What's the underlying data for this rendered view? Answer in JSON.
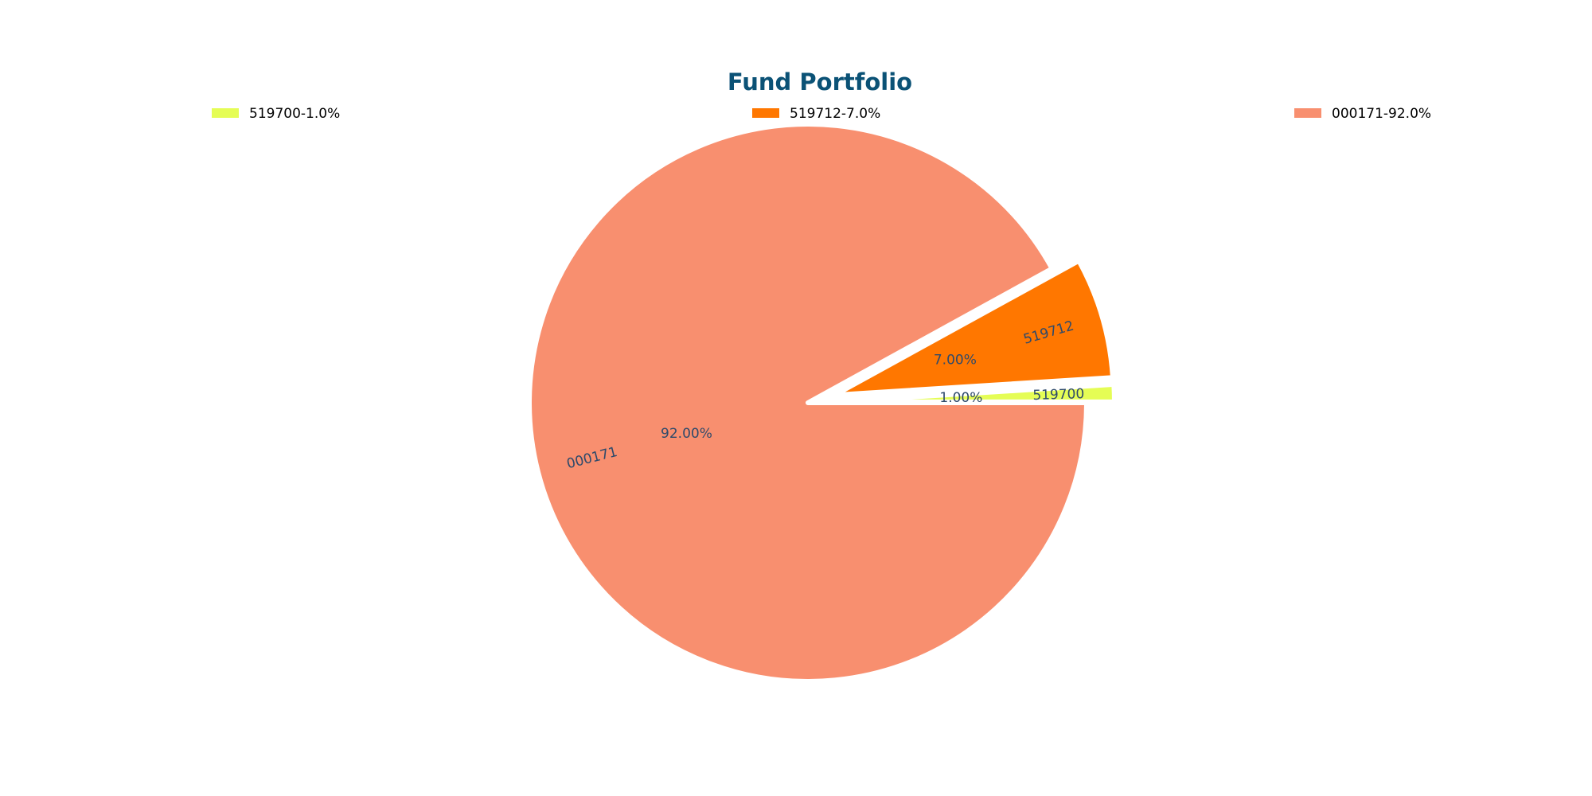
{
  "chart_data": {
    "type": "pie",
    "title": "Fund Portfolio",
    "slices": [
      {
        "name": "519700",
        "value": 1.0,
        "pct_label": "1.00%",
        "legend": "519700-1.0%",
        "color": "#e5fd55",
        "explode": true
      },
      {
        "name": "519712",
        "value": 7.0,
        "pct_label": "7.00%",
        "legend": "519712-7.0%",
        "color": "#ff7700",
        "explode": true
      },
      {
        "name": "000171",
        "value": 92.0,
        "pct_label": "92.00%",
        "legend": "000171-92.0%",
        "color": "#f88f6f",
        "explode": false
      }
    ],
    "legend_position": "top",
    "start_angle_deg": 0,
    "direction": "counterclockwise"
  }
}
